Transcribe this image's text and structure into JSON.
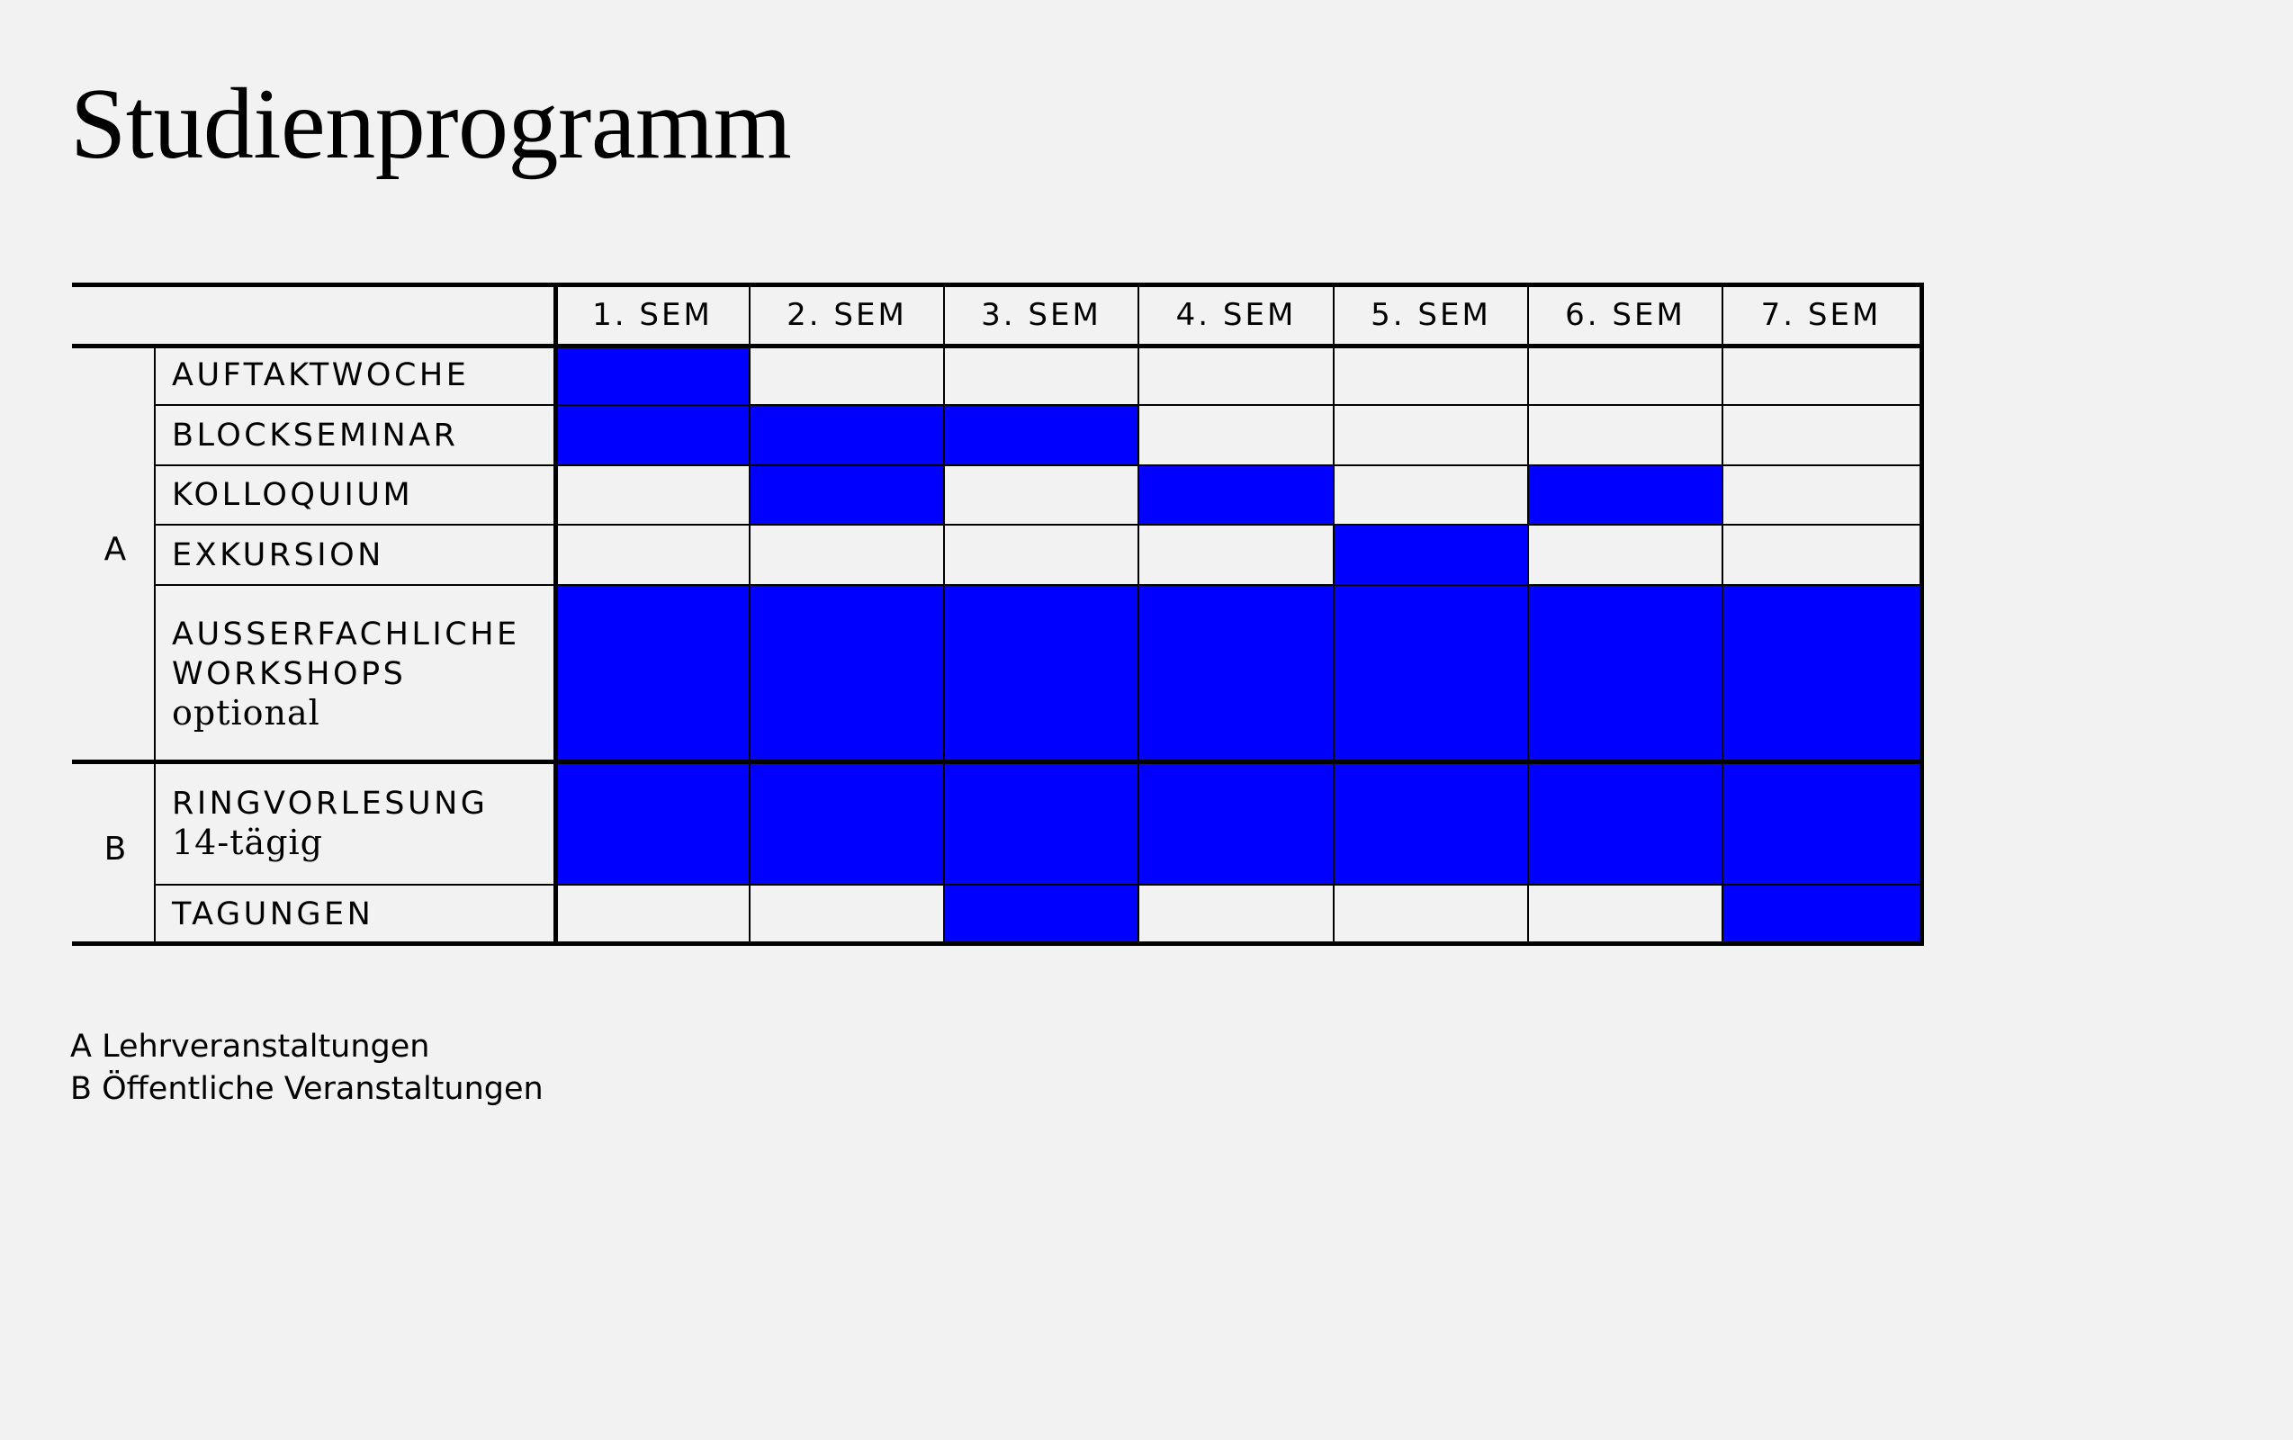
{
  "title": "Studienprogramm",
  "columns": [
    "1. SEM",
    "2. SEM",
    "3. SEM",
    "4. SEM",
    "5. SEM",
    "6. SEM",
    "7. SEM"
  ],
  "groups": [
    {
      "key": "A",
      "label": "A"
    },
    {
      "key": "B",
      "label": "B"
    }
  ],
  "rows": [
    {
      "group": "A",
      "label": "AUFTAKTWOCHE",
      "sub": "",
      "active": [
        1,
        0,
        0,
        0,
        0,
        0,
        0
      ]
    },
    {
      "group": "A",
      "label": "BLOCKSEMINAR",
      "sub": "",
      "active": [
        1,
        1,
        1,
        0,
        0,
        0,
        0
      ]
    },
    {
      "group": "A",
      "label": "KOLLOQUIUM",
      "sub": "",
      "active": [
        0,
        1,
        0,
        1,
        0,
        1,
        0
      ]
    },
    {
      "group": "A",
      "label": "EXKURSION",
      "sub": "",
      "active": [
        0,
        0,
        0,
        0,
        1,
        0,
        0
      ]
    },
    {
      "group": "A",
      "label": "AUSSERFACHLICHE\nWORKSHOPS",
      "sub": "optional",
      "active": [
        1,
        1,
        1,
        1,
        1,
        1,
        1
      ]
    },
    {
      "group": "B",
      "label": "RINGVORLESUNG",
      "sub": "14-tägig",
      "active": [
        1,
        1,
        1,
        1,
        1,
        1,
        1
      ]
    },
    {
      "group": "B",
      "label": "TAGUNGEN",
      "sub": "",
      "active": [
        0,
        0,
        1,
        0,
        0,
        0,
        1
      ]
    }
  ],
  "legend": {
    "a": "A Lehrveranstaltungen",
    "b": "B Öffentliche Veranstaltungen"
  },
  "colors": {
    "fill": "#0000ff",
    "background": "#f2f2f2",
    "line": "#000000"
  }
}
